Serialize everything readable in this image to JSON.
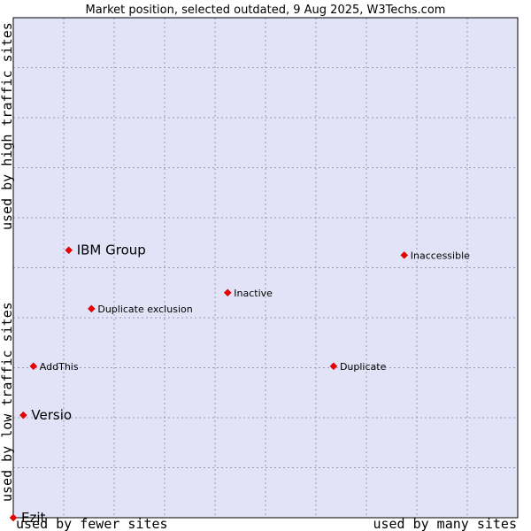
{
  "chart_data": {
    "type": "scatter",
    "title": "Market position, selected outdated, 9 Aug 2025, W3Techs.com",
    "xlabel_left": "used by fewer sites",
    "xlabel_right": "used by many sites",
    "ylabel_bottom": "used by low traffic sites",
    "ylabel_top": "used by high traffic sites",
    "xlim": [
      0,
      100
    ],
    "ylim": [
      0,
      100
    ],
    "grid": true,
    "colors": {
      "plot_background": "#e3e3f8",
      "grid": "#9a9ab4",
      "marker": "#ee0000",
      "frame": "#000000"
    },
    "points": [
      {
        "label": "IBM Group",
        "x": 11.0,
        "y": 53.5,
        "emphasis": true
      },
      {
        "label": "Inaccessible",
        "x": 77.5,
        "y": 52.5,
        "emphasis": false
      },
      {
        "label": "Inactive",
        "x": 42.5,
        "y": 45.0,
        "emphasis": false
      },
      {
        "label": "Duplicate exclusion",
        "x": 15.5,
        "y": 41.8,
        "emphasis": false
      },
      {
        "label": "AddThis",
        "x": 4.0,
        "y": 30.3,
        "emphasis": false
      },
      {
        "label": "Duplicate",
        "x": 63.5,
        "y": 30.3,
        "emphasis": false
      },
      {
        "label": "Versio",
        "x": 2.0,
        "y": 20.5,
        "emphasis": true
      },
      {
        "label": "Ezit",
        "x": 0.0,
        "y": 0.0,
        "emphasis": true
      }
    ]
  }
}
